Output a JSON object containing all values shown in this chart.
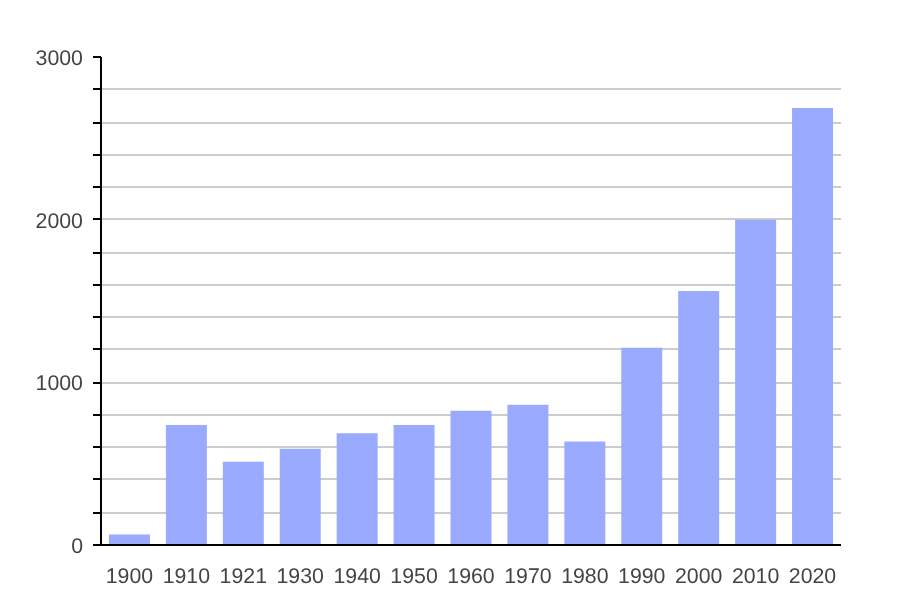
{
  "chart_data": {
    "type": "bar",
    "categories": [
      "1900",
      "1910",
      "1921",
      "1930",
      "1940",
      "1950",
      "1960",
      "1970",
      "1980",
      "1990",
      "2000",
      "2010",
      "2020"
    ],
    "values": [
      65,
      737,
      512,
      591,
      687,
      737,
      825,
      862,
      637,
      1212,
      1562,
      2000,
      2687
    ],
    "color": "#99aaff",
    "ylim": [
      0,
      3000
    ],
    "yticks": [
      0,
      {
        "value": 200,
        "label": null
      },
      {
        "value": 400,
        "label": null
      },
      {
        "value": 600,
        "label": null
      },
      {
        "value": 800,
        "label": null
      },
      1000,
      {
        "value": 1200,
        "label": null
      },
      {
        "value": 1400,
        "label": null
      },
      {
        "value": 1600,
        "label": null
      },
      {
        "value": 1800,
        "label": null
      },
      2000,
      {
        "value": 2200,
        "label": null
      },
      {
        "value": 2400,
        "label": null
      },
      {
        "value": 2600,
        "label": null
      },
      {
        "value": 2800,
        "label": null
      },
      3000
    ],
    "grid": "y"
  }
}
